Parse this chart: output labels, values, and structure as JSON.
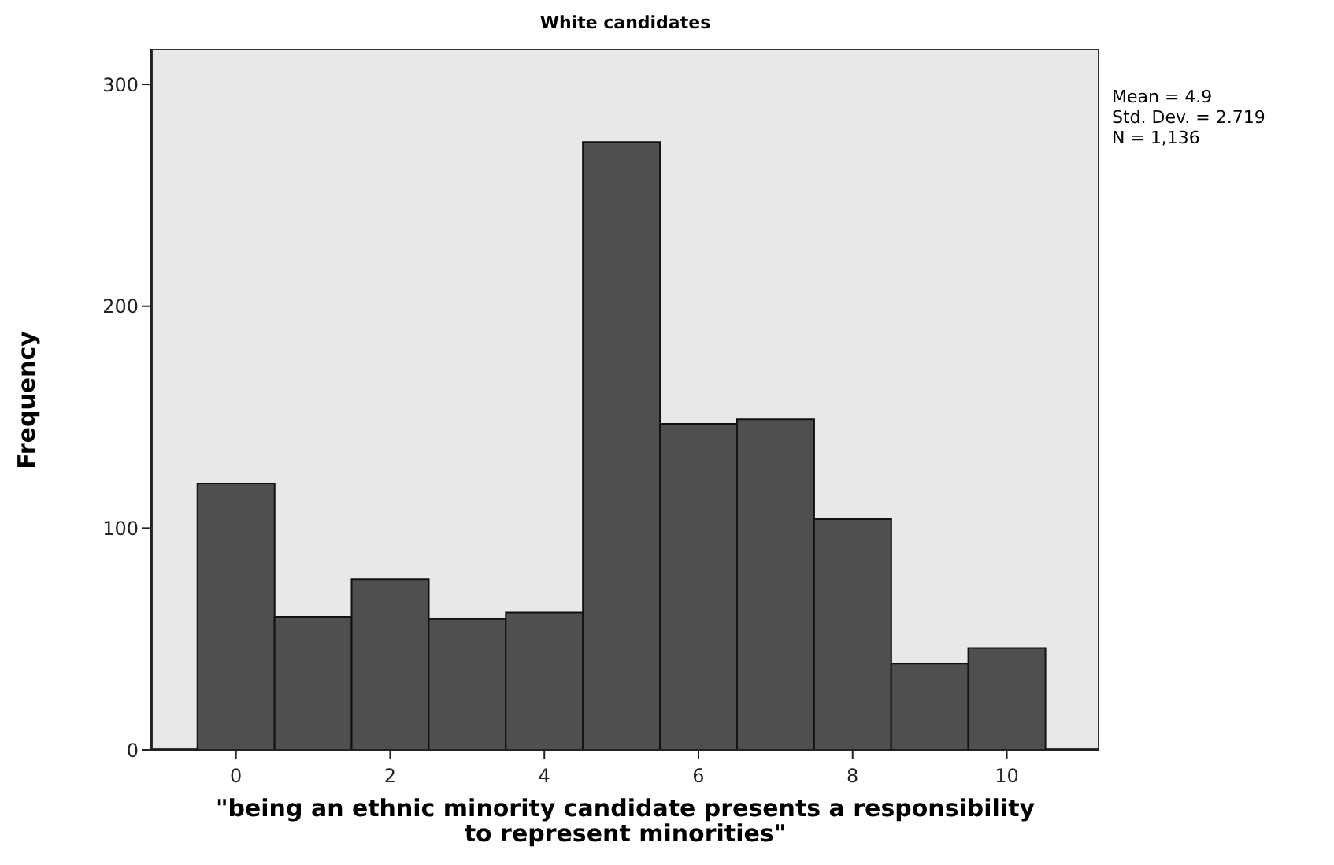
{
  "chart_data": {
    "type": "histogram",
    "title": "White candidates",
    "xlabel": "\"being an ethnic minority candidate presents a responsibility to represent minorities\"",
    "ylabel": "Frequency",
    "bins": [
      -0.5,
      0.5,
      1.5,
      2.5,
      3.5,
      4.5,
      5.5,
      6.5,
      7.5,
      8.5,
      9.5,
      10.5
    ],
    "values": [
      120,
      60,
      77,
      59,
      62,
      274,
      147,
      149,
      104,
      39,
      46
    ],
    "color": "#4f4f4f",
    "xlim": [
      -1.1,
      11.2
    ],
    "xticks": [
      0,
      2,
      4,
      6,
      8,
      10
    ],
    "ylim": [
      0,
      316
    ],
    "yticks": [
      0,
      100,
      200,
      300
    ],
    "annotations": [
      "Mean = 4.9",
      "Std. Dev. = 2.719",
      "N = 1,136"
    ],
    "grid": false,
    "legend": false
  }
}
